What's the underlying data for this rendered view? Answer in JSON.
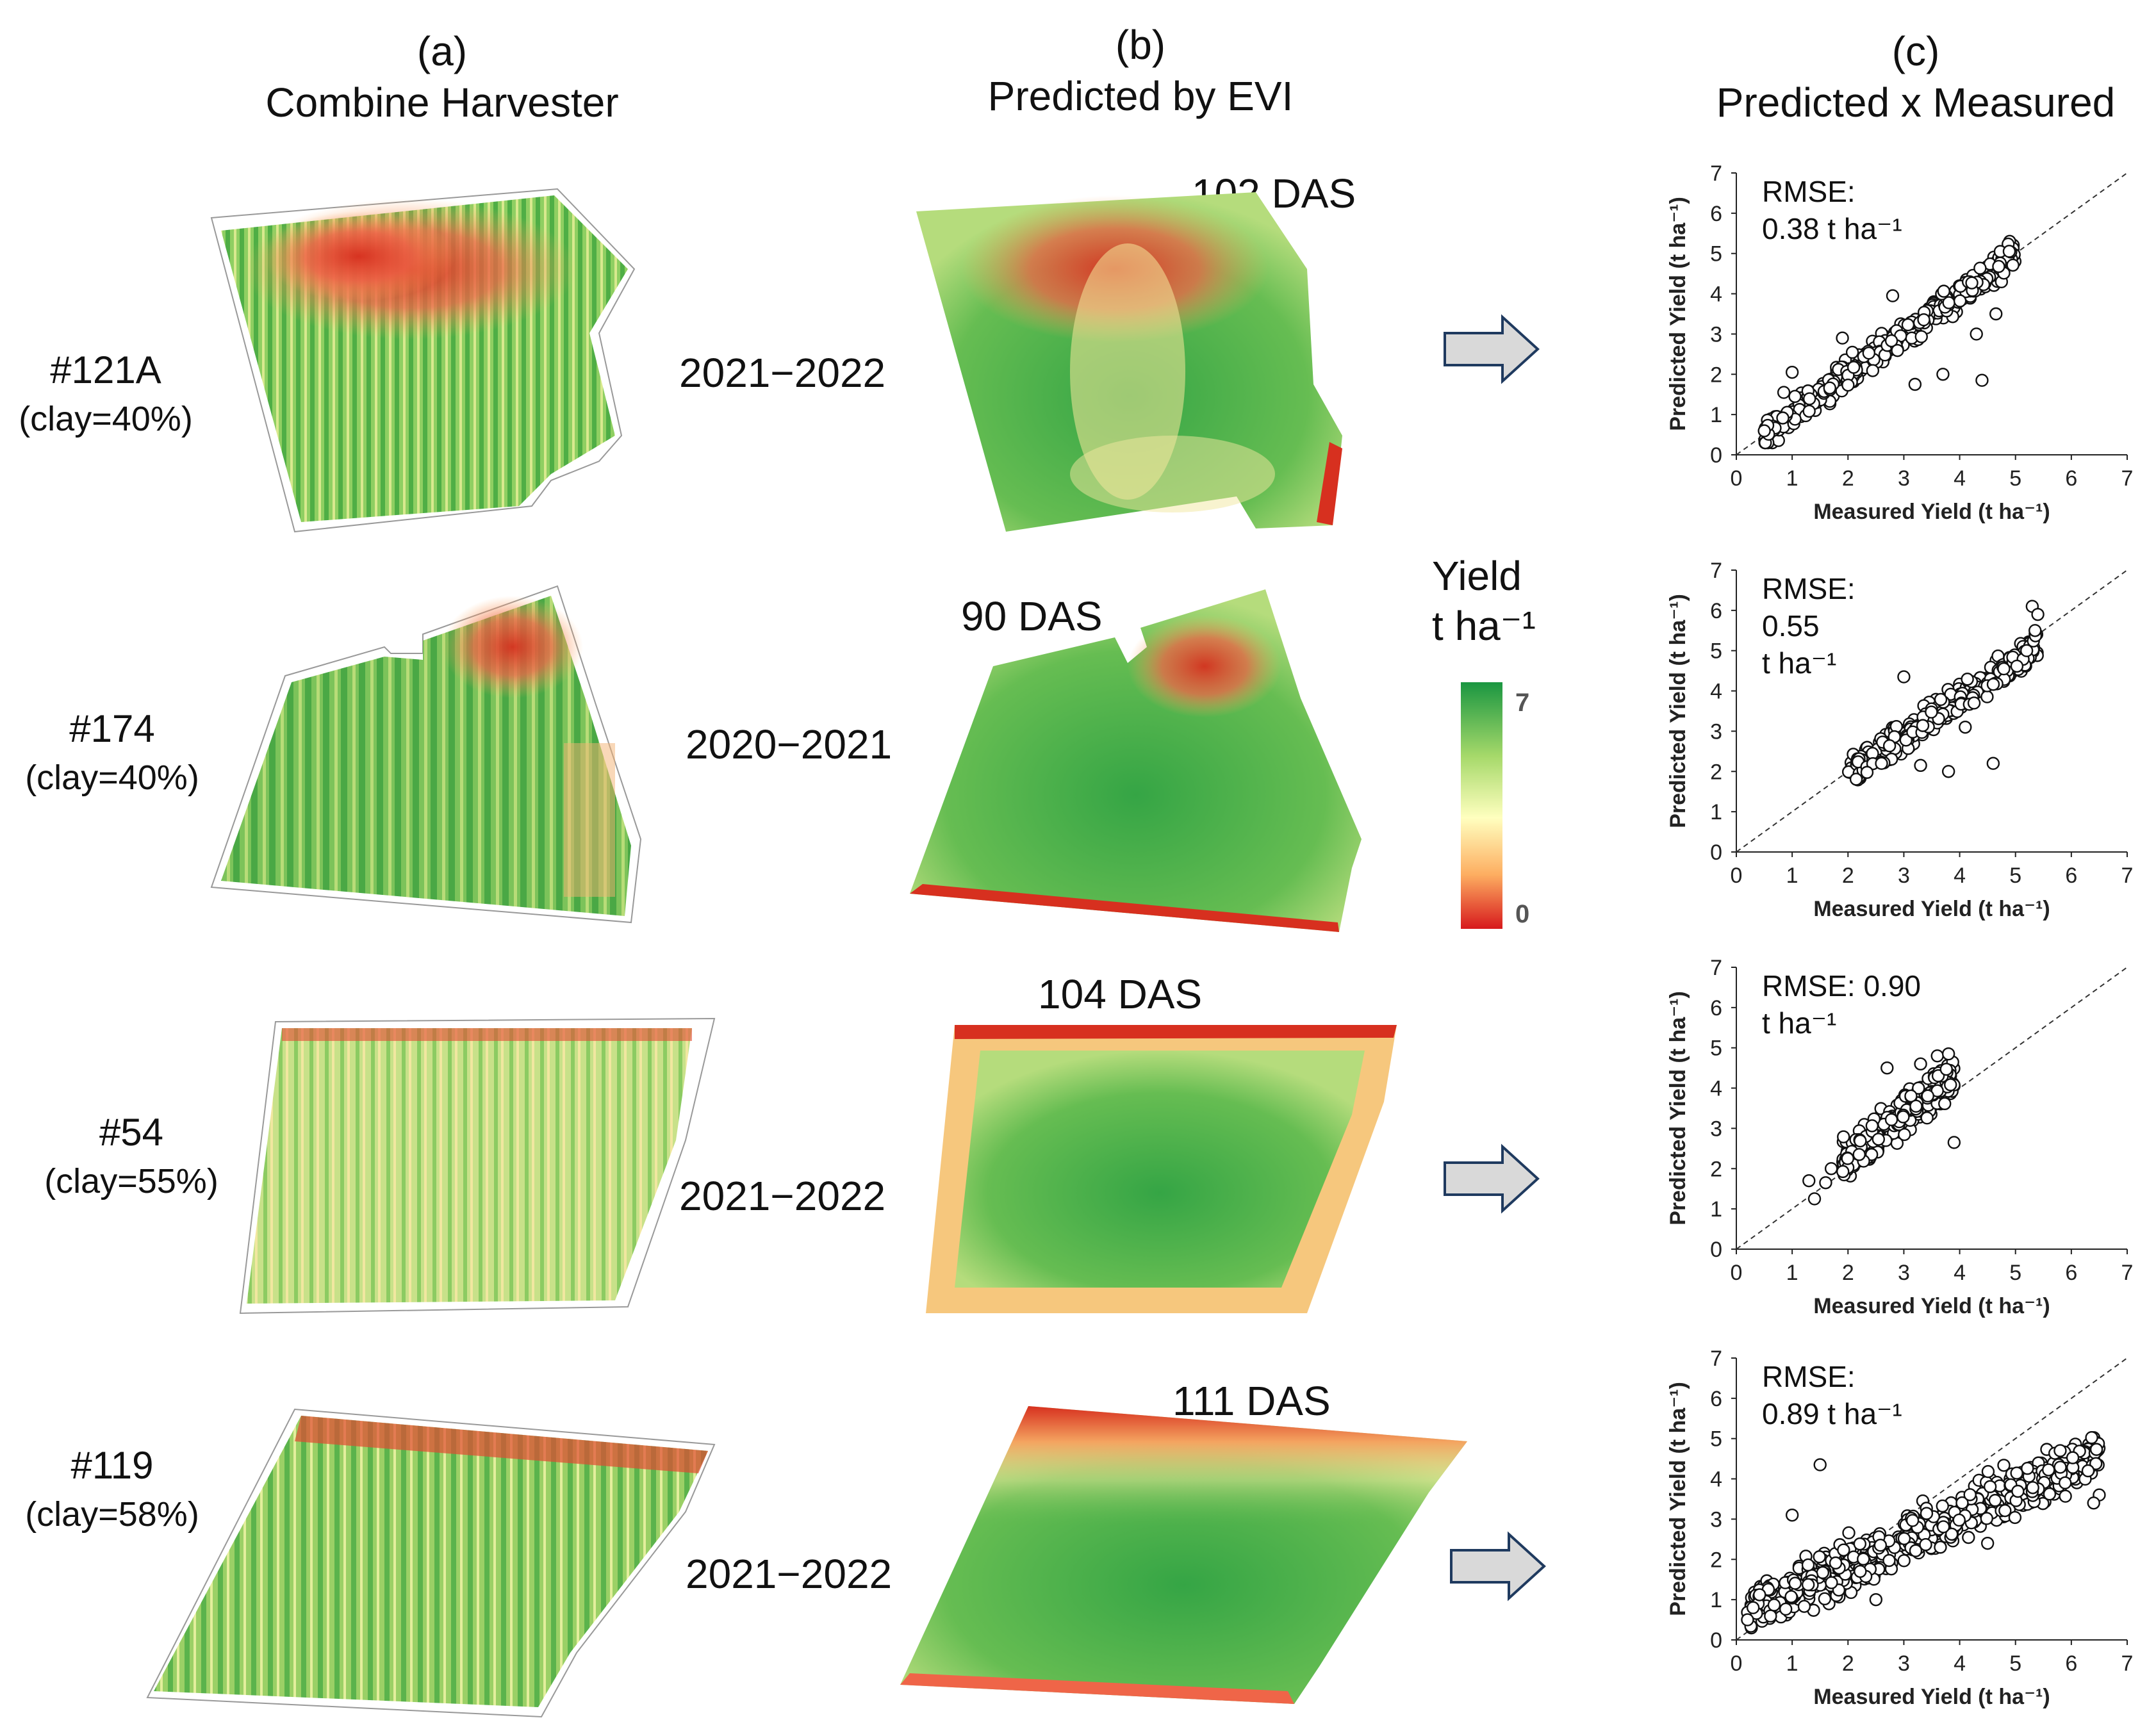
{
  "headers": [
    {
      "letter": "(a)",
      "title": "Combine Harvester"
    },
    {
      "letter": "(b)",
      "title": "Predicted by EVI"
    },
    {
      "letter": "(c)",
      "title": "Predicted x Measured"
    }
  ],
  "rows": [
    {
      "field": "#121A",
      "clay": "(clay=40%)",
      "season": "2021−2022",
      "das": "102 DAS",
      "arrow": true
    },
    {
      "field": "#174",
      "clay": "(clay=40%)",
      "season": "2020−2021",
      "das": "90 DAS",
      "arrow": false
    },
    {
      "field": "#54",
      "clay": "(clay=55%)",
      "season": "2021−2022",
      "das": "104 DAS",
      "arrow": true
    },
    {
      "field": "#119",
      "clay": "(clay=58%)",
      "season": "2021−2022",
      "das": "111 DAS",
      "arrow": true
    }
  ],
  "colorbar": {
    "title_line1": "Yield",
    "title_line2": "t ha⁻¹",
    "max_label": "7",
    "min_label": "0",
    "colors": [
      "#1a9641",
      "#a6d96a",
      "#ffffbf",
      "#fdae61",
      "#d7191c"
    ]
  },
  "chart_data": [
    {
      "type": "scatter",
      "title": "",
      "xlabel": "Measured Yield (t ha⁻¹)",
      "ylabel": "Predicted Yield (t ha⁻¹)",
      "xlim": [
        0,
        7
      ],
      "ylim": [
        0,
        7
      ],
      "ticks": [
        0,
        1,
        2,
        3,
        4,
        5,
        6,
        7
      ],
      "grid": false,
      "reference_line": "1:1 dashed",
      "annotation": [
        "RMSE:",
        "0.38 t ha⁻¹"
      ],
      "cloud": {
        "x_range": [
          0.5,
          5.0
        ],
        "slope": 1.0,
        "intercept": 0.0,
        "spread": 0.35,
        "n": 420
      },
      "points": [
        [
          1.0,
          2.05
        ],
        [
          1.05,
          1.45
        ],
        [
          0.85,
          1.55
        ],
        [
          1.9,
          2.9
        ],
        [
          3.7,
          2.0
        ],
        [
          4.4,
          1.85
        ],
        [
          4.3,
          3.0
        ],
        [
          4.65,
          3.5
        ],
        [
          3.2,
          1.75
        ],
        [
          2.8,
          3.95
        ]
      ]
    },
    {
      "type": "scatter",
      "title": "",
      "xlabel": "Measured Yield (t ha⁻¹)",
      "ylabel": "Predicted Yield (t ha⁻¹)",
      "xlim": [
        0,
        7
      ],
      "ylim": [
        0,
        7
      ],
      "ticks": [
        0,
        1,
        2,
        3,
        4,
        5,
        6,
        7
      ],
      "grid": false,
      "reference_line": "1:1 dashed",
      "annotation": [
        "RMSE:",
        "0.55",
        "t ha⁻¹"
      ],
      "cloud": {
        "x_range": [
          2.0,
          5.4
        ],
        "slope": 0.95,
        "intercept": 0.0,
        "spread": 0.35,
        "n": 360
      },
      "points": [
        [
          4.6,
          2.2
        ],
        [
          3.8,
          2.0
        ],
        [
          3.0,
          4.35
        ],
        [
          3.3,
          2.15
        ],
        [
          2.6,
          2.2
        ],
        [
          5.3,
          6.1
        ],
        [
          5.4,
          5.9
        ],
        [
          5.35,
          5.5
        ],
        [
          5.2,
          5.0
        ],
        [
          4.1,
          3.1
        ]
      ]
    },
    {
      "type": "scatter",
      "title": "",
      "xlabel": "Measured Yield (t ha⁻¹)",
      "ylabel": "Predicted Yield (t ha⁻¹)",
      "xlim": [
        0,
        7
      ],
      "ylim": [
        0,
        7
      ],
      "ticks": [
        0,
        1,
        2,
        3,
        4,
        5,
        6,
        7
      ],
      "grid": false,
      "reference_line": "1:1 dashed",
      "annotation": [
        "RMSE: 0.90",
        "t ha⁻¹"
      ],
      "cloud": {
        "x_range": [
          1.9,
          3.9
        ],
        "slope": 1.05,
        "intercept": 0.2,
        "spread": 0.5,
        "n": 300
      },
      "points": [
        [
          1.3,
          1.7
        ],
        [
          1.4,
          1.25
        ],
        [
          1.6,
          1.65
        ],
        [
          1.7,
          2.0
        ],
        [
          3.9,
          2.65
        ],
        [
          3.6,
          4.8
        ],
        [
          3.8,
          4.85
        ],
        [
          3.3,
          4.6
        ],
        [
          2.7,
          4.5
        ],
        [
          2.2,
          2.35
        ]
      ]
    },
    {
      "type": "scatter",
      "title": "",
      "xlabel": "Measured Yield (t ha⁻¹)",
      "ylabel": "Predicted Yield (t ha⁻¹)",
      "xlim": [
        0,
        7
      ],
      "ylim": [
        0,
        7
      ],
      "ticks": [
        0,
        1,
        2,
        3,
        4,
        5,
        6,
        7
      ],
      "grid": false,
      "reference_line": "1:1 dashed",
      "annotation": [
        "RMSE:",
        "0.89 t ha⁻¹"
      ],
      "cloud": {
        "x_range": [
          0.2,
          6.5
        ],
        "slope": 0.62,
        "intercept": 0.6,
        "spread": 0.55,
        "n": 650
      },
      "points": [
        [
          6.5,
          3.6
        ],
        [
          6.4,
          3.4
        ],
        [
          6.3,
          4.2
        ],
        [
          1.5,
          4.35
        ],
        [
          1.0,
          3.1
        ],
        [
          0.2,
          0.5
        ],
        [
          0.3,
          0.8
        ],
        [
          2.5,
          1.0
        ],
        [
          5.8,
          4.7
        ],
        [
          4.5,
          2.4
        ]
      ]
    }
  ]
}
